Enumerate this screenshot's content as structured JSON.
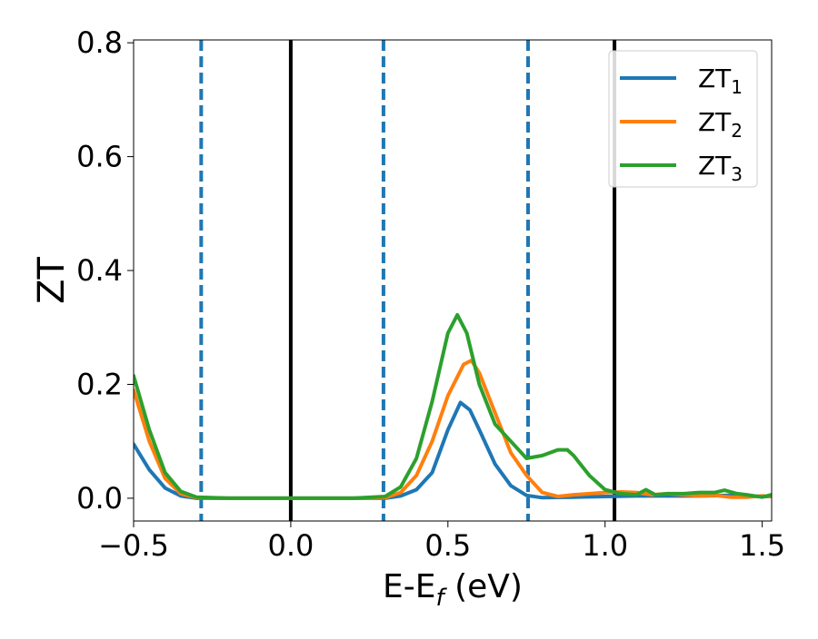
{
  "chart_data": {
    "type": "line",
    "title": "",
    "xlabel": "E-E",
    "xlabel_sub": "f",
    "xlabel_unit": " (eV)",
    "ylabel": "ZT",
    "xlim": [
      -0.5,
      1.53
    ],
    "ylim": [
      -0.04,
      0.805
    ],
    "xticks": [
      -0.5,
      0.0,
      0.5,
      1.0,
      1.5
    ],
    "xtick_labels": [
      "−0.5",
      "0.0",
      "0.5",
      "1.0",
      "1.5"
    ],
    "yticks": [
      0.0,
      0.2,
      0.4,
      0.6,
      0.8
    ],
    "ytick_labels": [
      "0.0",
      "0.2",
      "0.4",
      "0.6",
      "0.8"
    ],
    "grid": false,
    "legend_position": "top-right",
    "vlines": [
      {
        "x": -0.285,
        "style": "dashed",
        "color": "#1f77b4"
      },
      {
        "x": 0.0,
        "style": "solid",
        "color": "#000000"
      },
      {
        "x": 0.295,
        "style": "dashed",
        "color": "#1f77b4"
      },
      {
        "x": 0.755,
        "style": "dashed",
        "color": "#1f77b4"
      },
      {
        "x": 1.03,
        "style": "solid",
        "color": "#000000"
      }
    ],
    "series": [
      {
        "name": "ZT",
        "subscript": "1",
        "color": "#1f77b4",
        "points": [
          [
            -0.5,
            0.095
          ],
          [
            -0.45,
            0.05
          ],
          [
            -0.4,
            0.018
          ],
          [
            -0.35,
            0.004
          ],
          [
            -0.3,
            0.0
          ],
          [
            -0.2,
            0.0
          ],
          [
            0.0,
            0.0
          ],
          [
            0.2,
            0.0
          ],
          [
            0.3,
            0.0
          ],
          [
            0.35,
            0.004
          ],
          [
            0.4,
            0.015
          ],
          [
            0.45,
            0.045
          ],
          [
            0.5,
            0.12
          ],
          [
            0.54,
            0.168
          ],
          [
            0.57,
            0.155
          ],
          [
            0.6,
            0.12
          ],
          [
            0.65,
            0.06
          ],
          [
            0.7,
            0.022
          ],
          [
            0.75,
            0.005
          ],
          [
            0.8,
            0.001
          ],
          [
            0.9,
            0.002
          ],
          [
            1.0,
            0.003
          ],
          [
            1.1,
            0.004
          ],
          [
            1.2,
            0.004
          ],
          [
            1.3,
            0.004
          ],
          [
            1.4,
            0.005
          ],
          [
            1.5,
            0.003
          ],
          [
            1.53,
            0.003
          ]
        ]
      },
      {
        "name": "ZT",
        "subscript": "2",
        "color": "#ff7f0e",
        "points": [
          [
            -0.5,
            0.19
          ],
          [
            -0.45,
            0.1
          ],
          [
            -0.4,
            0.035
          ],
          [
            -0.35,
            0.008
          ],
          [
            -0.3,
            0.001
          ],
          [
            -0.2,
            0.0
          ],
          [
            0.0,
            0.0
          ],
          [
            0.2,
            0.0
          ],
          [
            0.3,
            0.001
          ],
          [
            0.35,
            0.01
          ],
          [
            0.4,
            0.04
          ],
          [
            0.45,
            0.1
          ],
          [
            0.5,
            0.18
          ],
          [
            0.55,
            0.235
          ],
          [
            0.575,
            0.242
          ],
          [
            0.6,
            0.22
          ],
          [
            0.65,
            0.15
          ],
          [
            0.7,
            0.08
          ],
          [
            0.75,
            0.04
          ],
          [
            0.8,
            0.01
          ],
          [
            0.85,
            0.003
          ],
          [
            0.9,
            0.006
          ],
          [
            1.0,
            0.01
          ],
          [
            1.05,
            0.011
          ],
          [
            1.1,
            0.01
          ],
          [
            1.15,
            0.006
          ],
          [
            1.2,
            0.008
          ],
          [
            1.25,
            0.006
          ],
          [
            1.3,
            0.004
          ],
          [
            1.35,
            0.005
          ],
          [
            1.4,
            0.002
          ],
          [
            1.45,
            0.002
          ],
          [
            1.5,
            0.004
          ],
          [
            1.53,
            0.003
          ]
        ]
      },
      {
        "name": "ZT",
        "subscript": "3",
        "color": "#2ca02c",
        "points": [
          [
            -0.5,
            0.215
          ],
          [
            -0.45,
            0.12
          ],
          [
            -0.4,
            0.045
          ],
          [
            -0.35,
            0.012
          ],
          [
            -0.3,
            0.002
          ],
          [
            -0.2,
            0.0
          ],
          [
            0.0,
            0.0
          ],
          [
            0.2,
            0.0
          ],
          [
            0.3,
            0.003
          ],
          [
            0.35,
            0.02
          ],
          [
            0.4,
            0.07
          ],
          [
            0.45,
            0.17
          ],
          [
            0.5,
            0.29
          ],
          [
            0.53,
            0.322
          ],
          [
            0.56,
            0.29
          ],
          [
            0.6,
            0.2
          ],
          [
            0.65,
            0.13
          ],
          [
            0.7,
            0.1
          ],
          [
            0.75,
            0.07
          ],
          [
            0.8,
            0.075
          ],
          [
            0.85,
            0.085
          ],
          [
            0.88,
            0.085
          ],
          [
            0.9,
            0.075
          ],
          [
            0.95,
            0.04
          ],
          [
            1.0,
            0.015
          ],
          [
            1.05,
            0.008
          ],
          [
            1.1,
            0.006
          ],
          [
            1.13,
            0.015
          ],
          [
            1.16,
            0.006
          ],
          [
            1.2,
            0.008
          ],
          [
            1.25,
            0.008
          ],
          [
            1.3,
            0.01
          ],
          [
            1.35,
            0.01
          ],
          [
            1.38,
            0.014
          ],
          [
            1.42,
            0.008
          ],
          [
            1.45,
            0.006
          ],
          [
            1.5,
            0.002
          ],
          [
            1.53,
            0.006
          ]
        ]
      }
    ]
  }
}
